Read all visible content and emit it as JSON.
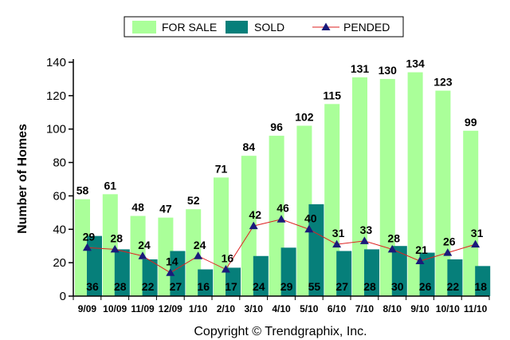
{
  "chart_data": {
    "type": "bar",
    "title": "",
    "xlabel": "",
    "ylabel": "Number of Homes",
    "ylim": [
      0,
      140
    ],
    "yticks": [
      0,
      20,
      40,
      60,
      80,
      100,
      120,
      140
    ],
    "grid": false,
    "legend_position": "top",
    "categories": [
      "9/09",
      "10/09",
      "11/09",
      "12/09",
      "1/10",
      "2/10",
      "3/10",
      "4/10",
      "5/10",
      "6/10",
      "7/10",
      "8/10",
      "9/10",
      "10/10",
      "11/10"
    ],
    "series": [
      {
        "name": "FOR SALE",
        "kind": "bar",
        "color": "#aaff99",
        "values": [
          58,
          61,
          48,
          47,
          52,
          71,
          84,
          96,
          102,
          115,
          131,
          130,
          134,
          123,
          99
        ]
      },
      {
        "name": "SOLD",
        "kind": "bar",
        "color": "#067f7a",
        "values": [
          36,
          28,
          22,
          27,
          16,
          17,
          24,
          29,
          55,
          27,
          28,
          30,
          26,
          22,
          18
        ]
      },
      {
        "name": "PENDED",
        "kind": "line",
        "color": "#dd2222",
        "marker_color": "#1a1a7a",
        "values": [
          29,
          28,
          24,
          14,
          24,
          16,
          42,
          46,
          40,
          31,
          33,
          28,
          21,
          26,
          31
        ]
      }
    ]
  },
  "copyright": "Copyright © Trendgraphix, Inc."
}
